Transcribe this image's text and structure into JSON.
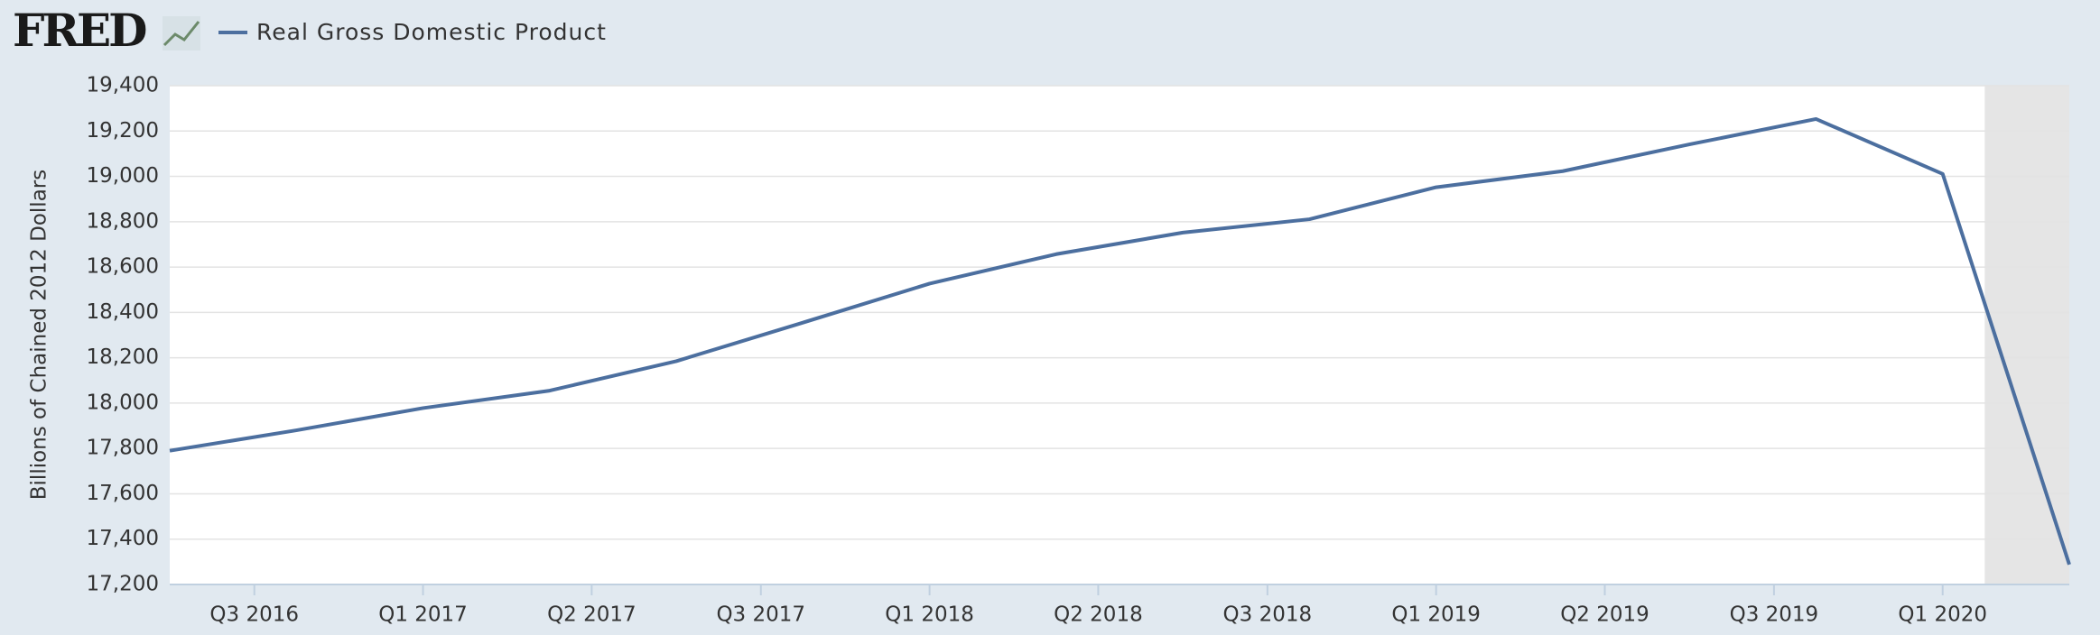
{
  "chart_data": {
    "type": "line",
    "logo": "FRED",
    "y_label": "Billions of Chained 2012 Dollars",
    "x": [
      2016.5,
      2016.75,
      2017.0,
      2017.25,
      2017.5,
      2017.75,
      2018.0,
      2018.25,
      2018.5,
      2018.75,
      2019.0,
      2019.25,
      2019.5,
      2019.75,
      2020.0,
      2020.25
    ],
    "series": [
      {
        "name": "Real Gross Domestic Product",
        "color": "#4c6f9f",
        "values": [
          17790,
          17880,
          17978,
          18055,
          18185,
          18355,
          18527,
          18657,
          18752,
          18811,
          18952,
          19023,
          19141,
          19253,
          19011,
          17288
        ]
      }
    ],
    "xlim": [
      2016.5,
      2020.25
    ],
    "xticks": [
      {
        "value": 2016.667,
        "label": "Q3 2016"
      },
      {
        "value": 2017.0,
        "label": "Q1 2017"
      },
      {
        "value": 2017.333,
        "label": "Q2 2017"
      },
      {
        "value": 2017.667,
        "label": "Q3 2017"
      },
      {
        "value": 2018.0,
        "label": "Q1 2018"
      },
      {
        "value": 2018.333,
        "label": "Q2 2018"
      },
      {
        "value": 2018.667,
        "label": "Q3 2018"
      },
      {
        "value": 2019.0,
        "label": "Q1 2019"
      },
      {
        "value": 2019.333,
        "label": "Q2 2019"
      },
      {
        "value": 2019.667,
        "label": "Q3 2019"
      },
      {
        "value": 2020.0,
        "label": "Q1 2020"
      }
    ],
    "ylim": [
      17200,
      19400
    ],
    "yticks": [
      {
        "value": 17200,
        "label": "17,200"
      },
      {
        "value": 17400,
        "label": "17,400"
      },
      {
        "value": 17600,
        "label": "17,600"
      },
      {
        "value": 17800,
        "label": "17,800"
      },
      {
        "value": 18000,
        "label": "18,000"
      },
      {
        "value": 18200,
        "label": "18,200"
      },
      {
        "value": 18400,
        "label": "18,400"
      },
      {
        "value": 18600,
        "label": "18,600"
      },
      {
        "value": 18800,
        "label": "18,800"
      },
      {
        "value": 19000,
        "label": "19,000"
      },
      {
        "value": 19200,
        "label": "19,200"
      },
      {
        "value": 19400,
        "label": "19,400"
      }
    ],
    "recession": [
      2020.083,
      2020.25
    ],
    "grid": true
  }
}
